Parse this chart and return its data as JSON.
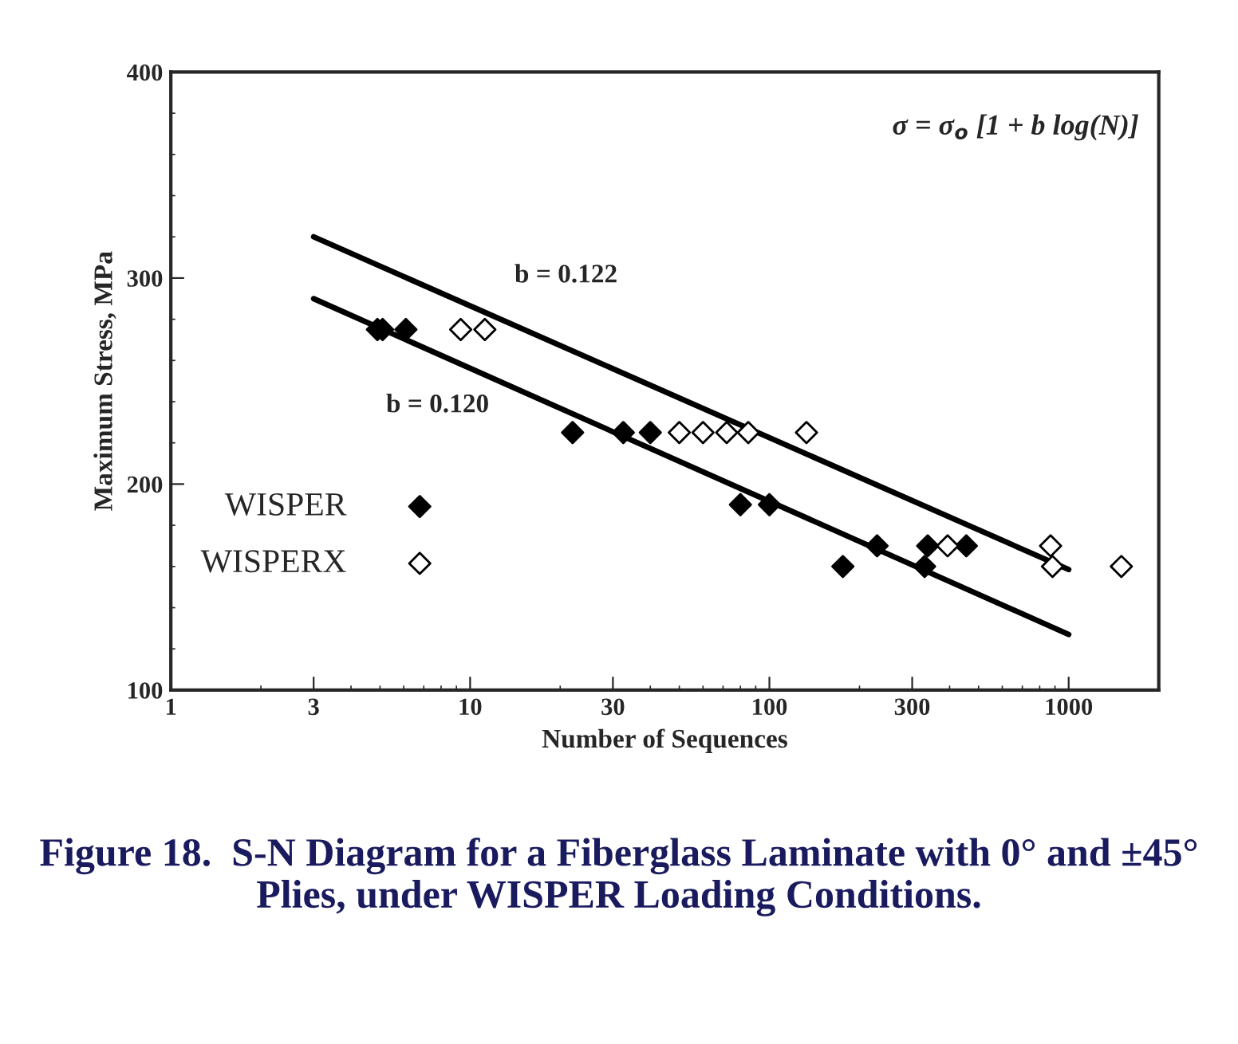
{
  "chart_data": {
    "type": "scatter",
    "title": "Figure 18.  S-N Diagram for a Fiberglass Laminate with 0° and ±45° Plies, under WISPER Loading Conditions.",
    "xlabel": "Number of Sequences",
    "ylabel": "Maximum Stress, MPa",
    "log": "x",
    "xlim": [
      1,
      2000
    ],
    "ylim": [
      100,
      400
    ],
    "xticks": [
      1,
      3,
      10,
      30,
      100,
      300,
      1000
    ],
    "yticks": [
      100,
      200,
      300,
      400
    ],
    "grid": false,
    "legend": "left",
    "marker": "diamond",
    "series": [
      {
        "name": "WISPER",
        "color": "#000000",
        "x": [
          4.9,
          5.1,
          6.1,
          22,
          32.5,
          40,
          80,
          100,
          176,
          229,
          330,
          338,
          455
        ],
        "values": [
          275,
          275,
          275,
          225,
          225,
          225,
          190,
          190,
          160,
          170,
          160,
          170,
          170
        ]
      },
      {
        "name": "WISPERX",
        "color": "#ffffff",
        "x": [
          9.3,
          11.2,
          50,
          60,
          72,
          85,
          133,
          394,
          870,
          883,
          1500
        ],
        "values": [
          275,
          275,
          225,
          225,
          225,
          225,
          225,
          170,
          170,
          160,
          160
        ]
      },
      {
        "type": "line",
        "color": "#000000",
        "x": [
          3,
          1000
        ],
        "values": [
          320,
          158.5
        ],
        "marker": "none"
      },
      {
        "type": "line",
        "color": "#000000",
        "x": [
          3,
          1000
        ],
        "values": [
          290,
          127
        ],
        "marker": "none"
      }
    ],
    "annotations": [
      "σ = σ$_{o}$ [1 + b log(N)]",
      "b = 0.122",
      "b = 0.120"
    ]
  }
}
